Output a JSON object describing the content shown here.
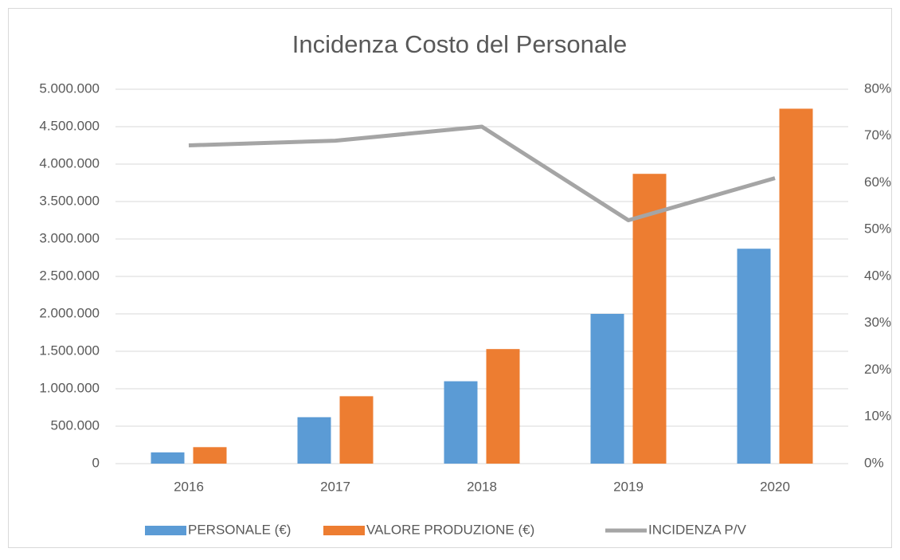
{
  "chart_data": {
    "type": "bar",
    "title": "Incidenza Costo del Personale",
    "categories": [
      "2016",
      "2017",
      "2018",
      "2019",
      "2020"
    ],
    "series": [
      {
        "name": "PERSONALE (€)",
        "color": "#5b9bd5",
        "values": [
          150000,
          620000,
          1100000,
          2000000,
          2870000
        ]
      },
      {
        "name": "VALORE PRODUZIONE (€)",
        "color": "#ed7d31",
        "values": [
          220000,
          900000,
          1530000,
          3870000,
          4740000
        ]
      },
      {
        "name": "INCIDENZA P/V",
        "color": "#a5a5a5",
        "type": "line",
        "axis": "y2",
        "values": [
          68,
          69,
          72,
          52,
          61
        ]
      }
    ],
    "ylim": [
      0,
      5000000
    ],
    "yticks": [
      0,
      {
        "value": 500000,
        "label": "500.000"
      },
      {
        "value": 1000000,
        "label": "1.000.000"
      },
      {
        "value": 1500000,
        "label": "1.500.000"
      },
      {
        "value": 2000000,
        "label": "2.000.000"
      },
      {
        "value": 2500000,
        "label": "2.500.000"
      },
      {
        "value": 3000000,
        "label": "3.000.000"
      },
      {
        "value": 3500000,
        "label": "3.500.000"
      },
      {
        "value": 4000000,
        "label": "4.000.000"
      },
      {
        "value": 4500000,
        "label": "4.500.000"
      },
      {
        "value": 5000000,
        "label": "5.000.000"
      }
    ],
    "y2lim": [
      0,
      80
    ],
    "y2ticks": [
      {
        "value": 0,
        "label": "0%"
      },
      {
        "value": 10,
        "label": "10%"
      },
      {
        "value": 20,
        "label": "20%"
      },
      {
        "value": 30,
        "label": "30%"
      },
      {
        "value": 40,
        "label": "40%"
      },
      {
        "value": 50,
        "label": "50%"
      },
      {
        "value": 60,
        "label": "60%"
      },
      {
        "value": 70,
        "label": "70%"
      },
      {
        "value": 80,
        "label": "80%"
      }
    ],
    "grid": true,
    "legend": "bottom"
  }
}
